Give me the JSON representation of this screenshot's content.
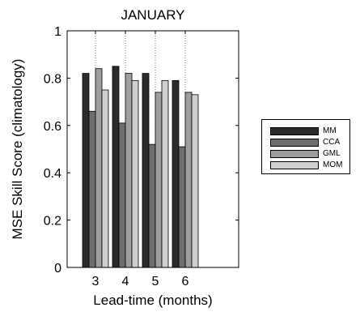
{
  "chart_data": {
    "type": "bar",
    "title": "JANUARY",
    "xlabel": "Lead-time (months)",
    "ylabel": "MSE Skill Score (climatology)",
    "categories": [
      "3",
      "4",
      "5",
      "6"
    ],
    "ylim": [
      0,
      1
    ],
    "yticks": [
      "0",
      "0.2",
      "0.4",
      "0.6",
      "0.8",
      "1"
    ],
    "grid": "vertical dotted lines at categories",
    "legend_position": "right, outside plot",
    "series": [
      {
        "name": "MM",
        "color": "#2b2b2b",
        "values": [
          0.82,
          0.85,
          0.82,
          0.79
        ]
      },
      {
        "name": "CCA",
        "color": "#6e6e6e",
        "values": [
          0.66,
          0.61,
          0.52,
          0.51
        ]
      },
      {
        "name": "GML",
        "color": "#9e9e9e",
        "values": [
          0.84,
          0.82,
          0.74,
          0.74
        ]
      },
      {
        "name": "MOM",
        "color": "#cfcfcf",
        "values": [
          0.75,
          0.79,
          0.79,
          0.73
        ]
      }
    ]
  }
}
